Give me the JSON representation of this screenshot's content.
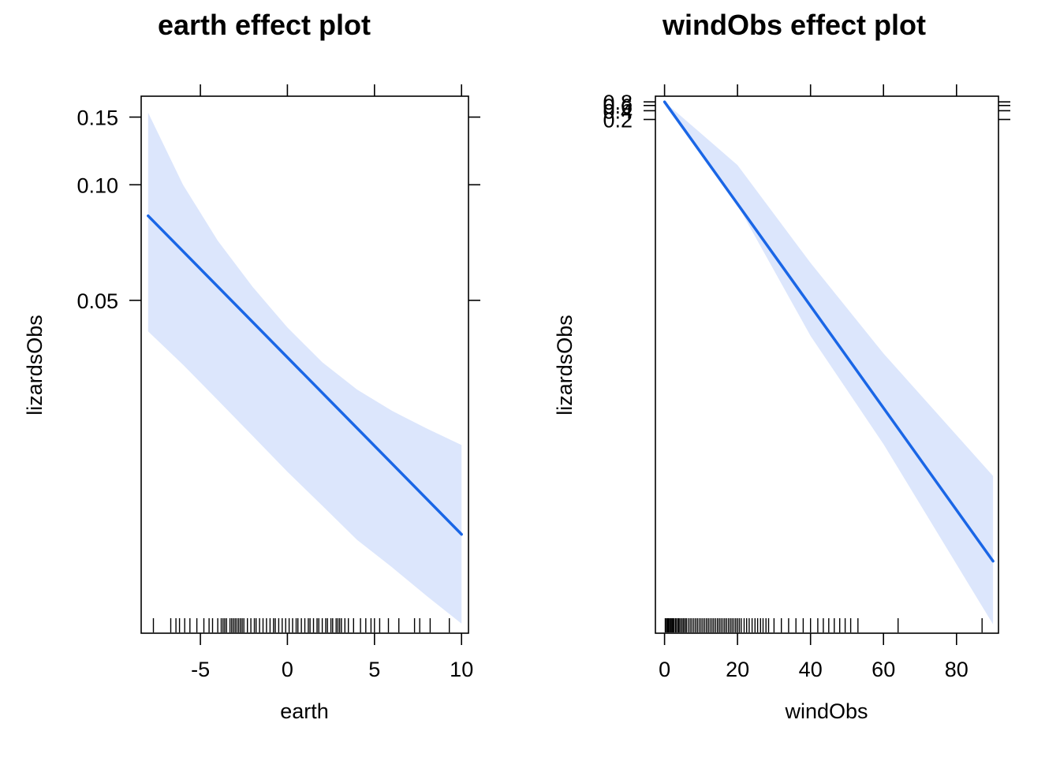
{
  "chart_data": [
    {
      "type": "line",
      "title": "earth effect plot",
      "xlabel": "earth",
      "ylabel": "lizardsObs",
      "xlim": [
        -8.4,
        10.4
      ],
      "ylim_log": [
        0.0068,
        0.17
      ],
      "y_scale": "log",
      "x_ticks": [
        -5,
        0,
        5,
        10
      ],
      "x_tick_labels": [
        "-5",
        "0",
        "5",
        "10"
      ],
      "y_ticks": [
        0.05,
        0.1,
        0.15
      ],
      "y_tick_labels": [
        "0.05",
        "0.10",
        "0.15"
      ],
      "series": [
        {
          "x": [
            -8,
            10
          ],
          "y": [
            0.083,
            0.0123
          ],
          "lower": [
            0.0415,
            0.0072
          ],
          "upper": [
            0.154,
            0.021
          ],
          "band_lower_x": [
            -8,
            -6,
            -4,
            -2,
            0,
            2,
            4,
            6,
            8,
            10
          ],
          "band_lower_y": [
            0.0415,
            0.034,
            0.0275,
            0.0222,
            0.0179,
            0.0146,
            0.0119,
            0.0101,
            0.0085,
            0.0072
          ],
          "band_upper_x": [
            -8,
            -6,
            -4,
            -2,
            0,
            2,
            4,
            6,
            8,
            10
          ],
          "band_upper_y": [
            0.154,
            0.1,
            0.0715,
            0.0542,
            0.0425,
            0.0345,
            0.0293,
            0.0258,
            0.0232,
            0.021
          ]
        }
      ],
      "rug": [
        -7.7,
        -6.7,
        -6.4,
        -6.2,
        -5.9,
        -5.6,
        -5.2,
        -4.8,
        -4.5,
        -4.3,
        -4.0,
        -3.8,
        -3.7,
        -3.6,
        -3.5,
        -3.3,
        -3.2,
        -3.1,
        -3.0,
        -2.9,
        -2.8,
        -2.7,
        -2.6,
        -2.5,
        -2.3,
        -2.1,
        -1.9,
        -1.8,
        -1.6,
        -1.4,
        -1.2,
        -1.0,
        -0.8,
        -0.7,
        -0.5,
        -0.3,
        -0.1,
        0.1,
        0.3,
        0.5,
        0.6,
        0.8,
        1.0,
        1.2,
        1.3,
        1.5,
        1.7,
        1.8,
        2.0,
        2.2,
        2.3,
        2.5,
        2.6,
        2.8,
        2.9,
        3.0,
        3.1,
        3.3,
        3.5,
        3.8,
        4.2,
        4.5,
        4.8,
        5.0,
        5.3,
        5.8,
        6.4,
        7.3,
        7.6,
        8.2,
        9.3
      ],
      "colors": {
        "line": "#1a66e6",
        "band": "#dce6fc",
        "axis": "#000000"
      }
    },
    {
      "type": "line",
      "title": "windObs effect plot",
      "xlabel": "windObs",
      "ylabel": "lizardsObs",
      "xlim": [
        -2.5,
        91.5
      ],
      "ylim_log": [
        5.5e-19,
        1.25
      ],
      "y_scale": "log",
      "x_ticks": [
        0,
        20,
        40,
        60,
        80
      ],
      "x_tick_labels": [
        "0",
        "20",
        "40",
        "60",
        "80"
      ],
      "y_ticks": [
        0.2,
        0.4,
        0.6,
        0.8
      ],
      "y_tick_labels": [
        "0.2",
        "0.4",
        "0.6",
        "0.8"
      ],
      "series": [
        {
          "x": [
            0,
            90
          ],
          "y": [
            0.8,
            1.6e-16
          ],
          "lower": [
            0.8,
            1.1e-18
          ],
          "upper": [
            0.8,
            1.3e-13
          ],
          "band_lower_x": [
            0,
            20,
            40,
            60,
            90
          ],
          "band_lower_y": [
            0.8,
            0.00024,
            8e-09,
            1.6e-12,
            1.1e-18
          ],
          "band_upper_x": [
            0,
            20,
            40,
            60,
            90
          ],
          "band_upper_y": [
            0.8,
            0.0055,
            2.5e-06,
            2e-09,
            1.3e-13
          ]
        }
      ],
      "rug": [
        0.2,
        0.5,
        0.8,
        1.1,
        1.4,
        1.7,
        2.0,
        2.3,
        2.6,
        3.0,
        3.3,
        3.7,
        4.0,
        4.4,
        4.8,
        5.2,
        5.6,
        6.0,
        6.5,
        7.0,
        7.5,
        8.0,
        8.5,
        9.0,
        9.5,
        10.0,
        10.5,
        11.0,
        11.5,
        12.0,
        12.5,
        13.0,
        13.5,
        14.0,
        14.5,
        15.0,
        15.5,
        16.0,
        16.5,
        17.0,
        17.5,
        18.0,
        18.5,
        19.0,
        19.5,
        20.0,
        20.5,
        21.0,
        21.8,
        22.5,
        23.2,
        24.0,
        24.8,
        25.5,
        26.3,
        27.0,
        27.8,
        28.5,
        30.0,
        32.0,
        34.0,
        36.0,
        38.0,
        40.0,
        42.0,
        43.5,
        45.0,
        46.5,
        48.0,
        49.5,
        51.0,
        53.0,
        64.0,
        87.0
      ],
      "colors": {
        "line": "#1a66e6",
        "band": "#dce6fc",
        "axis": "#000000"
      }
    }
  ]
}
